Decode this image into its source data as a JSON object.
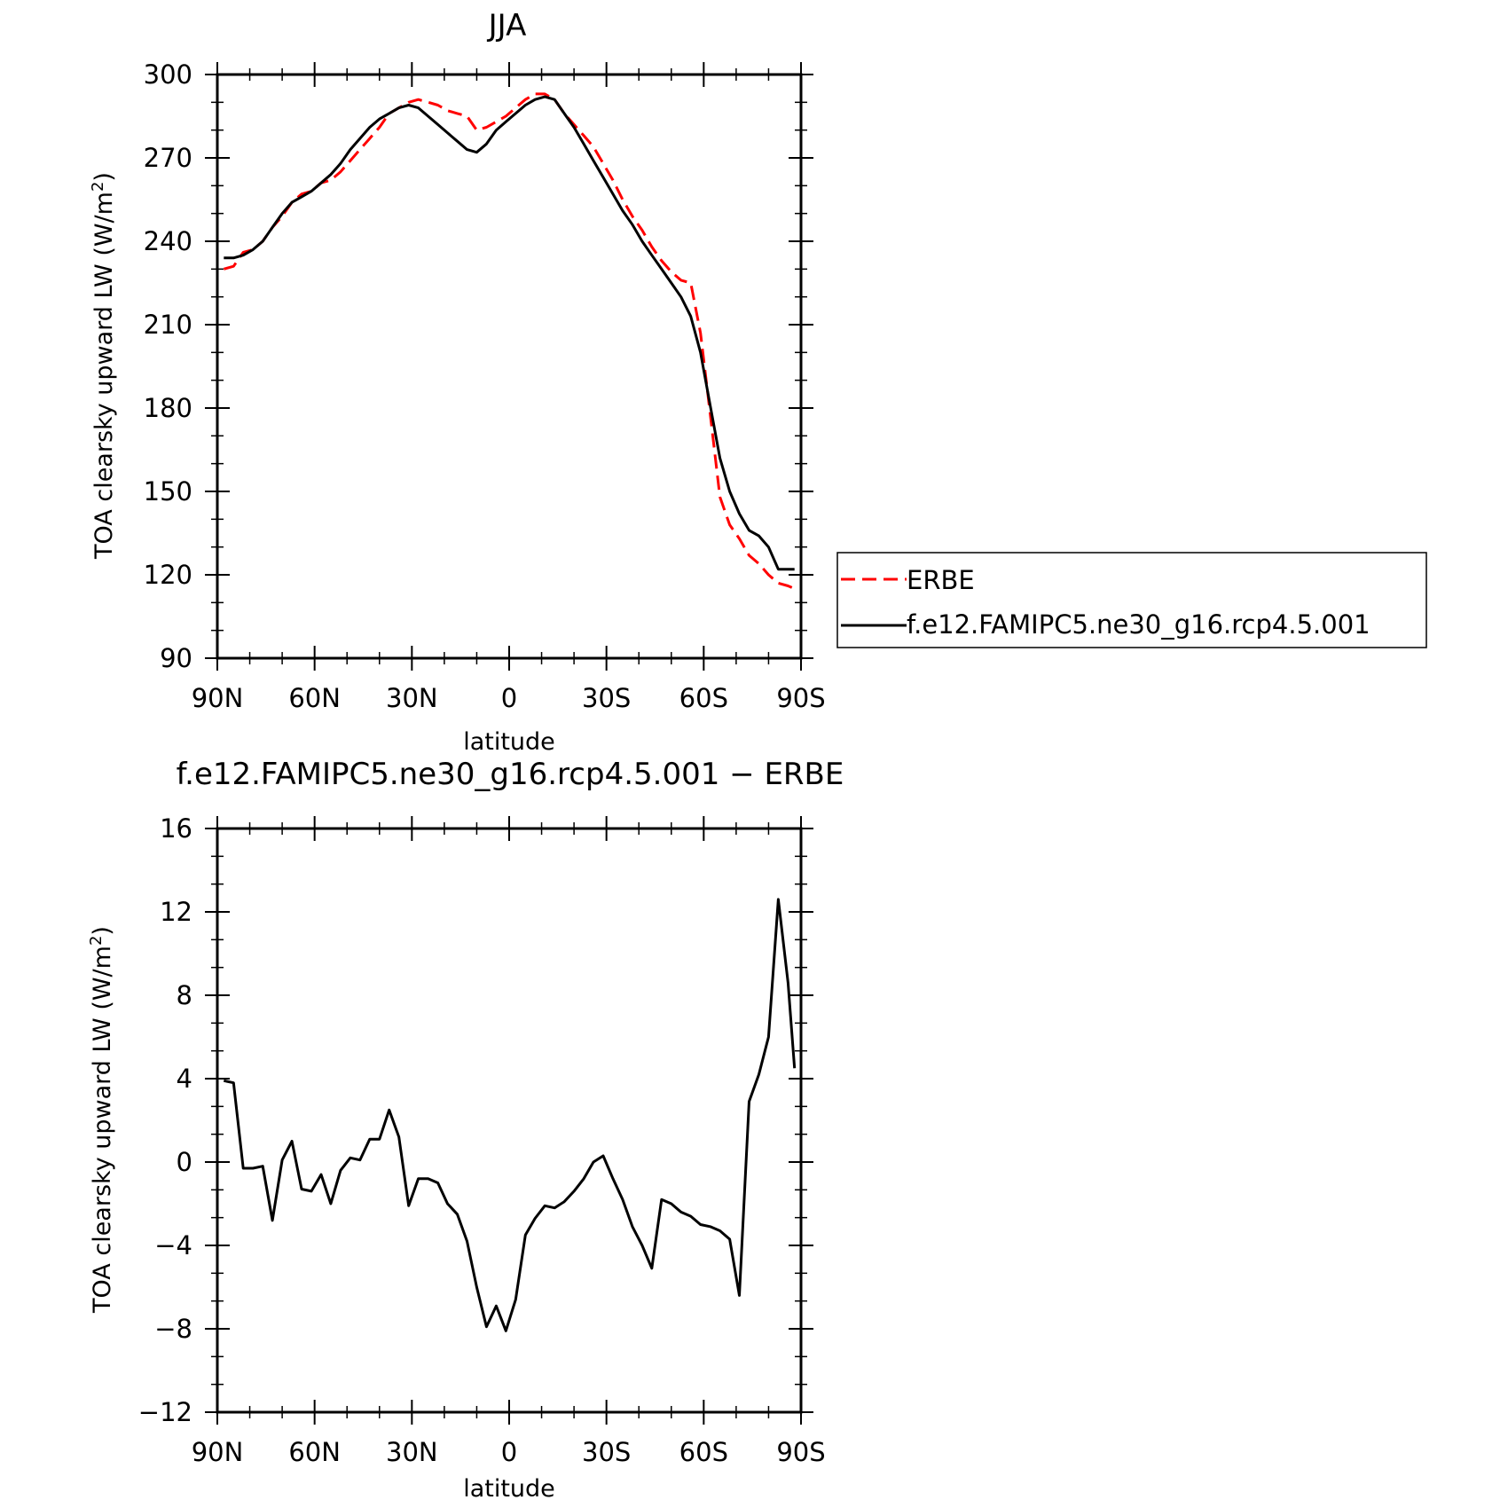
{
  "colors": {
    "erbe": "#ff0000",
    "model": "#000000",
    "axes": "#000000"
  },
  "chart_data": [
    {
      "type": "line",
      "title": "JJA",
      "xlabel": "latitude",
      "ylabel": "TOA clearsky upward LW (W/m",
      "ylabel_sup": "2",
      "ylabel_close": ")",
      "xlim": [
        90,
        -90
      ],
      "ylim": [
        90,
        300
      ],
      "xticks": [
        90,
        60,
        30,
        0,
        -30,
        -60,
        -90
      ],
      "xtick_labels": [
        "90N",
        "60N",
        "30N",
        "0",
        "30S",
        "60S",
        "90S"
      ],
      "yticks": [
        90,
        120,
        150,
        180,
        210,
        240,
        270,
        300
      ],
      "ytick_labels": [
        "90",
        "120",
        "150",
        "180",
        "210",
        "240",
        "270",
        "300"
      ],
      "legend": {
        "placement": "right",
        "entries": [
          "ERBE",
          "f.e12.FAMIPC5.ne30_g16.rcp4.5.001"
        ]
      },
      "series": [
        {
          "name": "ERBE",
          "style": "dashed",
          "color": "#ff0000",
          "x": [
            88,
            85,
            82,
            79,
            76,
            73,
            70,
            67,
            64,
            61,
            58,
            55,
            52,
            49,
            46,
            43,
            40,
            37,
            34,
            31,
            28,
            25,
            22,
            19,
            16,
            13,
            10,
            7,
            4,
            1,
            -2,
            -5,
            -8,
            -11,
            -14,
            -17,
            -20,
            -23,
            -26,
            -29,
            -32,
            -35,
            -38,
            -41,
            -44,
            -47,
            -50,
            -53,
            -56,
            -59,
            -62,
            -65,
            -68,
            -71,
            -74,
            -77,
            -80,
            -83,
            -86,
            -88
          ],
          "values": [
            230,
            231,
            236,
            237,
            240,
            245,
            249,
            254,
            257,
            258,
            261,
            262,
            265,
            269,
            273,
            277,
            281,
            286,
            288,
            290,
            291,
            290,
            289,
            287,
            286,
            285,
            280,
            281,
            283,
            285,
            288,
            291,
            293,
            293,
            291,
            286,
            282,
            278,
            274,
            268,
            262,
            255,
            249,
            244,
            238,
            233,
            229,
            226,
            225,
            207,
            178,
            148,
            138,
            133,
            127,
            124,
            120,
            117,
            116,
            115
          ]
        },
        {
          "name": "f.e12.FAMIPC5.ne30_g16.rcp4.5.001",
          "style": "solid",
          "color": "#000000",
          "x": [
            88,
            85,
            82,
            79,
            76,
            73,
            70,
            67,
            64,
            61,
            58,
            55,
            52,
            49,
            46,
            43,
            40,
            37,
            34,
            31,
            28,
            25,
            22,
            19,
            16,
            13,
            10,
            7,
            4,
            1,
            -2,
            -5,
            -8,
            -11,
            -14,
            -17,
            -20,
            -23,
            -26,
            -29,
            -32,
            -35,
            -38,
            -41,
            -44,
            -47,
            -50,
            -53,
            -56,
            -59,
            -62,
            -65,
            -68,
            -71,
            -74,
            -77,
            -80,
            -83,
            -86,
            -88
          ],
          "values": [
            234,
            234,
            235,
            237,
            240,
            245,
            250,
            254,
            256,
            258,
            261,
            264,
            268,
            273,
            277,
            281,
            284,
            286,
            288,
            289,
            288,
            285,
            282,
            279,
            276,
            273,
            272,
            275,
            280,
            283,
            286,
            289,
            291,
            292,
            291,
            286,
            281,
            275,
            269,
            263,
            257,
            251,
            246,
            240,
            235,
            230,
            225,
            220,
            213,
            200,
            181,
            162,
            150,
            142,
            136,
            134,
            130,
            122,
            122,
            122
          ]
        }
      ]
    },
    {
      "type": "line",
      "title": "f.e12.FAMIPC5.ne30_g16.rcp4.5.001 − ERBE",
      "xlabel": "latitude",
      "ylabel": "TOA clearsky upward LW (W/m",
      "ylabel_sup": "2",
      "ylabel_close": ")",
      "xlim": [
        90,
        -90
      ],
      "ylim": [
        -12,
        16
      ],
      "xticks": [
        90,
        60,
        30,
        0,
        -30,
        -60,
        -90
      ],
      "xtick_labels": [
        "90N",
        "60N",
        "30N",
        "0",
        "30S",
        "60S",
        "90S"
      ],
      "yticks": [
        -12,
        -8,
        -4,
        0,
        4,
        8,
        12,
        16
      ],
      "ytick_labels": [
        "−12",
        "−8",
        "−4",
        "0",
        "4",
        "8",
        "12",
        "16"
      ],
      "series": [
        {
          "style": "solid",
          "color": "#000000",
          "x": [
            88,
            85,
            82,
            79,
            76,
            73,
            70,
            67,
            64,
            61,
            58,
            55,
            52,
            49,
            46,
            43,
            40,
            37,
            34,
            31,
            28,
            25,
            22,
            19,
            16,
            13,
            10,
            7,
            4,
            1,
            -2,
            -5,
            -8,
            -11,
            -14,
            -17,
            -20,
            -23,
            -26,
            -29,
            -32,
            -35,
            -38,
            -41,
            -44,
            -47,
            -50,
            -53,
            -56,
            -59,
            -62,
            -65,
            -68,
            -71,
            -74,
            -77,
            -80,
            -83,
            -86,
            -88
          ],
          "values": [
            3.9,
            3.8,
            -0.3,
            -0.3,
            -0.2,
            -2.8,
            0.1,
            1.0,
            -1.3,
            -1.4,
            -0.6,
            -2.0,
            -0.4,
            0.2,
            0.1,
            1.1,
            1.1,
            2.5,
            1.2,
            -2.1,
            -0.8,
            -0.8,
            -1.0,
            -2.0,
            -2.5,
            -3.8,
            -6.0,
            -7.9,
            -6.9,
            -8.1,
            -6.6,
            -3.5,
            -2.7,
            -2.1,
            -2.2,
            -1.9,
            -1.4,
            -0.8,
            0.0,
            0.3,
            -0.8,
            -1.8,
            -3.1,
            -4.0,
            -5.1,
            -1.8,
            -2.0,
            -2.4,
            -2.6,
            -3.0,
            -3.1,
            -3.3,
            -3.7,
            -6.4,
            2.9,
            4.2,
            6.0,
            12.6,
            8.6,
            4.5
          ]
        }
      ]
    }
  ]
}
